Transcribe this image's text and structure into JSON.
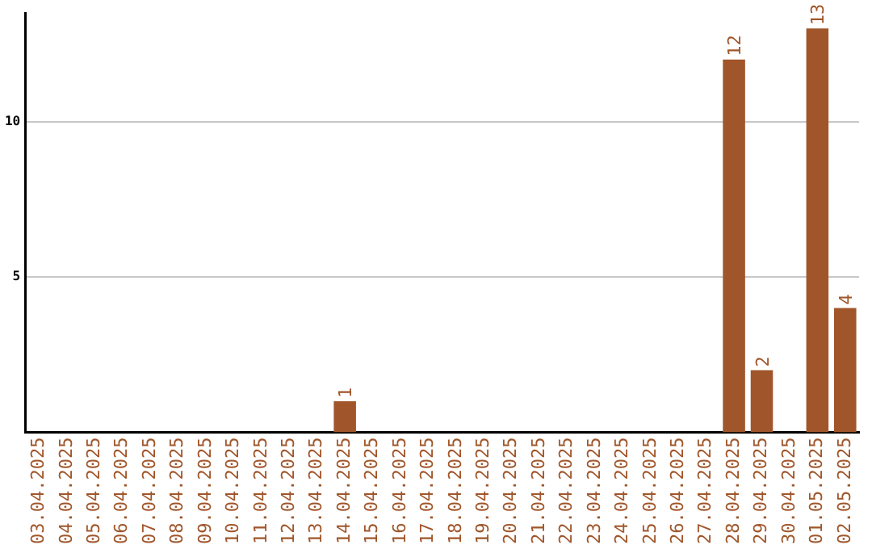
{
  "chart_data": {
    "type": "bar",
    "categories": [
      "03.04.2025",
      "04.04.2025",
      "05.04.2025",
      "06.04.2025",
      "07.04.2025",
      "08.04.2025",
      "09.04.2025",
      "10.04.2025",
      "11.04.2025",
      "12.04.2025",
      "13.04.2025",
      "14.04.2025",
      "15.04.2025",
      "16.04.2025",
      "17.04.2025",
      "18.04.2025",
      "19.04.2025",
      "20.04.2025",
      "21.04.2025",
      "22.04.2025",
      "23.04.2025",
      "24.04.2025",
      "25.04.2025",
      "26.04.2025",
      "27.04.2025",
      "28.04.2025",
      "29.04.2025",
      "30.04.2025",
      "01.05.2025",
      "02.05.2025"
    ],
    "values": [
      0,
      0,
      0,
      0,
      0,
      0,
      0,
      0,
      0,
      0,
      0,
      1,
      0,
      0,
      0,
      0,
      0,
      0,
      0,
      0,
      0,
      0,
      0,
      0,
      0,
      12,
      2,
      0,
      13,
      4
    ],
    "value_labels": [
      null,
      null,
      null,
      null,
      null,
      null,
      null,
      null,
      null,
      null,
      null,
      "1",
      null,
      null,
      null,
      null,
      null,
      null,
      null,
      null,
      null,
      null,
      null,
      null,
      null,
      "12",
      "2",
      null,
      "13",
      "4"
    ],
    "color": "#a0562a",
    "ylim": [
      0,
      13.5
    ],
    "yticks": [
      5,
      10
    ],
    "grid": "y",
    "legend": false
  }
}
